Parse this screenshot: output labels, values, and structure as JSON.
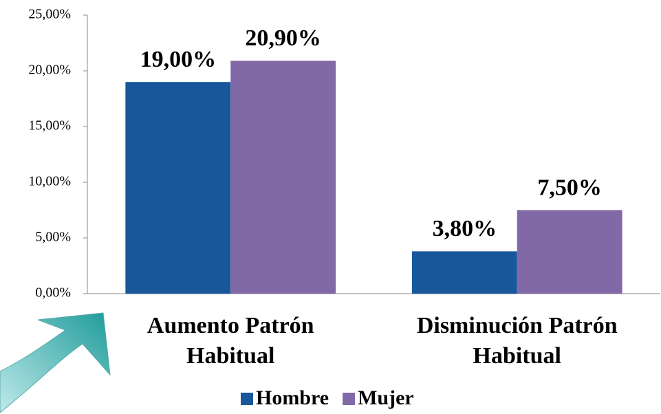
{
  "chart_data": {
    "type": "bar",
    "categories": [
      "Aumento Patrón Habitual",
      "Disminución Patrón Habitual"
    ],
    "series": [
      {
        "name": "Hombre",
        "color": "#17579a",
        "values": [
          19,
          3.8
        ],
        "value_labels": [
          "19,00%",
          "3,80%"
        ]
      },
      {
        "name": "Mujer",
        "color": "#8169a8",
        "values": [
          20.9,
          7.5
        ],
        "value_labels": [
          "20,90%",
          "7,50%"
        ]
      }
    ],
    "ylim": [
      0,
      25
    ],
    "yticks": [
      {
        "value": 0,
        "label": "0,00%"
      },
      {
        "value": 5,
        "label": "5,00%"
      },
      {
        "value": 10,
        "label": "10,00%"
      },
      {
        "value": 15,
        "label": "15,00%"
      },
      {
        "value": 20,
        "label": "20,00%"
      },
      {
        "value": 25,
        "label": "25,00%"
      }
    ],
    "legend": "bottom"
  }
}
